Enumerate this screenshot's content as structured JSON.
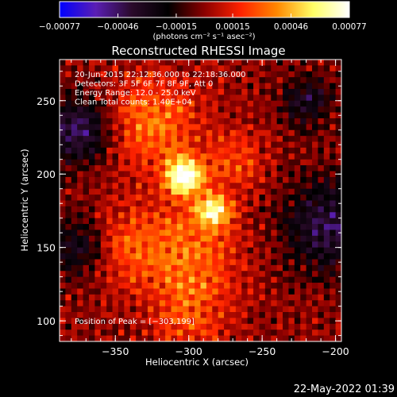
{
  "chart_data": {
    "type": "heatmap",
    "title": "Reconstructed RHESSI Image",
    "xlabel": "Heliocentric X (arcsec)",
    "ylabel": "Heliocentric Y (arcsec)",
    "xlim": [
      -388,
      -196
    ],
    "ylim": [
      86,
      278
    ],
    "x_ticks": [
      -350,
      -300,
      -250,
      -200
    ],
    "x_tick_labels": [
      "−350",
      "−300",
      "−250",
      "−200"
    ],
    "y_ticks": [
      100,
      150,
      200,
      250
    ],
    "y_tick_labels": [
      "100",
      "150",
      "200",
      "250"
    ],
    "colorbar": {
      "min": -0.00077,
      "max": 0.00077,
      "ticks": [
        -0.00077,
        -0.00046,
        -0.00015,
        0.00015,
        0.00046,
        0.00077
      ],
      "tick_labels": [
        "−0.00077",
        "−0.00046",
        "−0.00015",
        "0.00015",
        "0.00046",
        "0.00077"
      ],
      "unit_label": "(photons cm⁻² s⁻¹ asec⁻²)"
    },
    "colormap_stops": [
      "#0000ff",
      "#5a1eb4",
      "#2a0a2a",
      "#000000",
      "#8b0000",
      "#ff2200",
      "#ff8800",
      "#ffff66",
      "#ffffff"
    ],
    "sources": [
      {
        "x": -303,
        "y": 199,
        "sigma": 9,
        "amp": 1.0
      },
      {
        "x": -283,
        "y": 175,
        "sigma": 8,
        "amp": 0.75
      },
      {
        "x": -325,
        "y": 235,
        "sigma": 22,
        "amp": 0.45
      },
      {
        "x": -300,
        "y": 150,
        "sigma": 25,
        "amp": 0.38
      },
      {
        "x": -345,
        "y": 150,
        "sigma": 18,
        "amp": 0.28
      },
      {
        "x": -268,
        "y": 210,
        "sigma": 14,
        "amp": 0.3
      },
      {
        "x": -300,
        "y": 105,
        "sigma": 20,
        "amp": 0.3
      }
    ],
    "negative_regions": [
      {
        "x": -375,
        "y": 230,
        "sigma": 16,
        "amp": 0.6
      },
      {
        "x": -375,
        "y": 150,
        "sigma": 14,
        "amp": 0.45
      },
      {
        "x": -205,
        "y": 165,
        "sigma": 22,
        "amp": 0.55
      },
      {
        "x": -220,
        "y": 250,
        "sigma": 12,
        "amp": 0.4
      }
    ],
    "annotations": [
      "20-Jun-2015 22:12:36.000 to 22:18:36.000",
      "Detectors: 3F 5F 6F 7F 8F 9F, Att 0",
      "Energy Range: 12.0 - 25.0 keV",
      "Clean      Total counts: 1.40E+04"
    ],
    "peak_label": "Position of Peak = [−303,199]",
    "timestamp": "22-May-2022 01:39"
  }
}
